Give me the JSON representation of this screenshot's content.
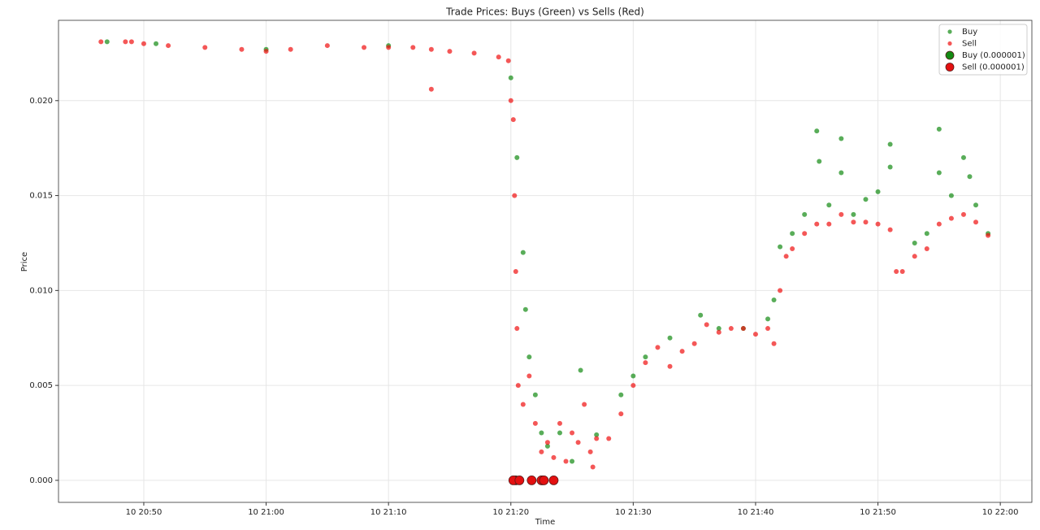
{
  "chart_data": {
    "type": "scatter",
    "title": "Trade Prices: Buys (Green) vs Sells (Red)",
    "x_label": "Time",
    "y_label": "Price",
    "grid": true,
    "legend": "upper right",
    "xlim": [
      1243.03,
      1322.58
    ],
    "ylim": [
      -0.00116,
      0.02423
    ],
    "xticks": [
      {
        "value": 1250,
        "label": "10 20:50"
      },
      {
        "value": 1260,
        "label": "10 21:00"
      },
      {
        "value": 1270,
        "label": "10 21:10"
      },
      {
        "value": 1280,
        "label": "10 21:20"
      },
      {
        "value": 1290,
        "label": "10 21:30"
      },
      {
        "value": 1300,
        "label": "10 21:40"
      },
      {
        "value": 1310,
        "label": "10 21:50"
      },
      {
        "value": 1320,
        "label": "10 22:00"
      }
    ],
    "yticks": [
      {
        "value": 0,
        "label": "0.000"
      },
      {
        "value": 0.005,
        "label": "0.005"
      },
      {
        "value": 0.01,
        "label": "0.010"
      },
      {
        "value": 0.015,
        "label": "0.015"
      },
      {
        "value": 0.02,
        "label": "0.020"
      }
    ],
    "series": [
      {
        "name": "Buy",
        "color": "#138a13",
        "x": [
          1247,
          1251,
          1260,
          1270,
          1280,
          1280.5,
          1281,
          1281.2,
          1281.5,
          1282,
          1282.5,
          1283,
          1284,
          1285,
          1285.7,
          1287,
          1289,
          1290,
          1291,
          1293,
          1295.5,
          1297,
          1299,
          1301,
          1301.5,
          1302,
          1303,
          1304,
          1305,
          1305.2,
          1306,
          1307,
          1307,
          1308,
          1309,
          1310,
          1311,
          1311,
          1313,
          1314,
          1315,
          1315,
          1316,
          1317,
          1317.5,
          1318,
          1319
        ],
        "values": [
          0.0231,
          0.023,
          0.0227,
          0.0229,
          0.0212,
          0.017,
          0.012,
          0.009,
          0.0065,
          0.0045,
          0.0025,
          0.0018,
          0.0025,
          0.001,
          0.0058,
          0.0024,
          0.0045,
          0.0055,
          0.0065,
          0.0075,
          0.0087,
          0.008,
          0.008,
          0.0085,
          0.0095,
          0.0123,
          0.013,
          0.014,
          0.0184,
          0.0168,
          0.0145,
          0.018,
          0.0162,
          0.014,
          0.0148,
          0.0152,
          0.0177,
          0.0165,
          0.0125,
          0.013,
          0.0185,
          0.0162,
          0.015,
          0.017,
          0.016,
          0.0145,
          0.013
        ]
      },
      {
        "name": "Sell",
        "color": "#f01010",
        "x": [
          1246.5,
          1248.5,
          1249,
          1250,
          1252,
          1255,
          1258,
          1260,
          1262,
          1265,
          1268,
          1270,
          1272,
          1273.5,
          1273.5,
          1275,
          1277,
          1279,
          1279.8,
          1280,
          1280.2,
          1280.3,
          1280.4,
          1280.5,
          1280.6,
          1281,
          1281.5,
          1282,
          1282.5,
          1283,
          1283.5,
          1284,
          1284.5,
          1285,
          1285.5,
          1286,
          1286.5,
          1286.7,
          1287,
          1288,
          1289,
          1290,
          1291,
          1292,
          1293,
          1294,
          1295,
          1296,
          1297,
          1298,
          1299,
          1300,
          1301,
          1301.5,
          1302,
          1302.5,
          1303,
          1304,
          1305,
          1306,
          1307,
          1308,
          1309,
          1310,
          1311,
          1311.5,
          1312,
          1313,
          1314,
          1315,
          1316,
          1317,
          1318,
          1319
        ],
        "values": [
          0.0231,
          0.0231,
          0.0231,
          0.023,
          0.0229,
          0.0228,
          0.0227,
          0.0226,
          0.0227,
          0.0229,
          0.0228,
          0.0228,
          0.0228,
          0.0227,
          0.0206,
          0.0226,
          0.0225,
          0.0223,
          0.0221,
          0.02,
          0.019,
          0.015,
          0.011,
          0.008,
          0.005,
          0.004,
          0.0055,
          0.003,
          0.0015,
          0.002,
          0.0012,
          0.003,
          0.001,
          0.0025,
          0.002,
          0.004,
          0.0015,
          0.0007,
          0.0022,
          0.0022,
          0.0035,
          0.005,
          0.0062,
          0.007,
          0.006,
          0.0068,
          0.0072,
          0.0082,
          0.0078,
          0.008,
          0.008,
          0.0077,
          0.008,
          0.0072,
          0.01,
          0.0118,
          0.0122,
          0.013,
          0.0135,
          0.0135,
          0.014,
          0.0136,
          0.0136,
          0.0135,
          0.0132,
          0.011,
          0.011,
          0.0118,
          0.0122,
          0.0135,
          0.0138,
          0.014,
          0.0136,
          0.0129
        ]
      },
      {
        "name": "Buy (0.000001)",
        "color": "#138a13",
        "x": [
          1280.4,
          1282.6
        ],
        "values": [
          0,
          0
        ]
      },
      {
        "name": "Sell (0.000001)",
        "color": "#e31010",
        "x": [
          1280.2,
          1280.7,
          1281.7,
          1282.5,
          1282.7,
          1283.5
        ],
        "values": [
          0,
          0,
          0,
          0,
          0,
          0
        ]
      }
    ]
  }
}
